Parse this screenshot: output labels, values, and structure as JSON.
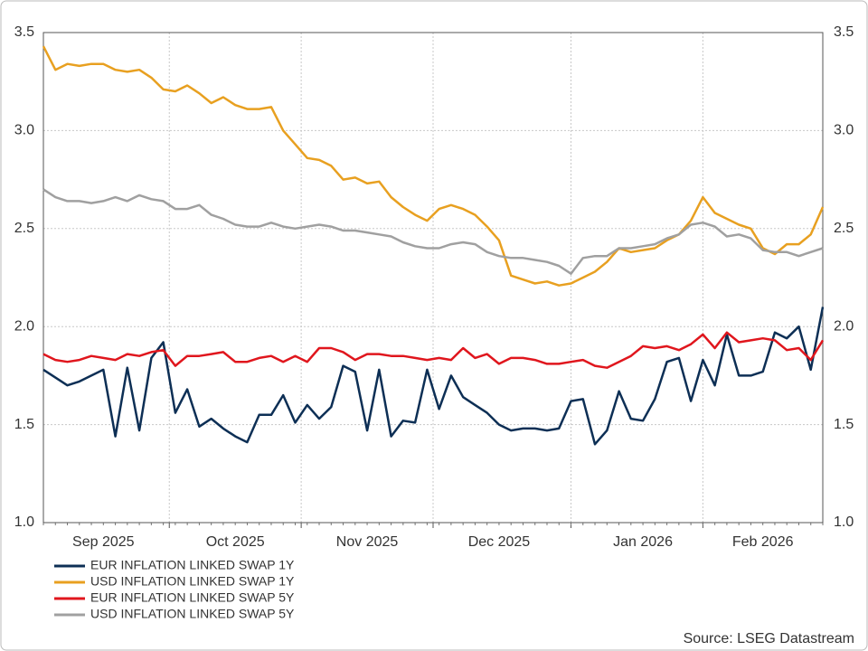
{
  "chart_data": {
    "type": "line",
    "categories": [
      null,
      null,
      null,
      null,
      null,
      "Sep 2025",
      null,
      null,
      null,
      null,
      null,
      null,
      null,
      null,
      null,
      null,
      "Oct 2025",
      null,
      null,
      null,
      null,
      null,
      null,
      null,
      null,
      null,
      null,
      "Nov 2025",
      null,
      null,
      null,
      null,
      null,
      null,
      null,
      null,
      null,
      null,
      "Dec 2025",
      null,
      null,
      null,
      null,
      null,
      null,
      null,
      null,
      null,
      null,
      null,
      "Jan 2026",
      null,
      null,
      null,
      null,
      null,
      null,
      null,
      null,
      null,
      "Feb 2026",
      null,
      null,
      null,
      null,
      null
    ],
    "series": [
      {
        "name": "EUR INFLATION LINKED SWAP 1Y",
        "color": "#0d2f55",
        "values": [
          1.78,
          1.74,
          1.7,
          1.72,
          1.75,
          1.78,
          1.44,
          1.79,
          1.47,
          1.84,
          1.92,
          1.56,
          1.68,
          1.49,
          1.53,
          1.48,
          1.44,
          1.41,
          1.55,
          1.55,
          1.65,
          1.51,
          1.6,
          1.53,
          1.59,
          1.8,
          1.77,
          1.47,
          1.78,
          1.44,
          1.52,
          1.51,
          1.78,
          1.58,
          1.75,
          1.64,
          1.6,
          1.56,
          1.5,
          1.47,
          1.48,
          1.48,
          1.47,
          1.48,
          1.62,
          1.63,
          1.4,
          1.47,
          1.67,
          1.53,
          1.52,
          1.63,
          1.82,
          1.84,
          1.62,
          1.83,
          1.7,
          1.96,
          1.75,
          1.75,
          1.77,
          1.97,
          1.94,
          2.0,
          1.78,
          2.1
        ]
      },
      {
        "name": "USD INFLATION LINKED SWAP 1Y",
        "color": "#e8a020",
        "values": [
          3.43,
          3.31,
          3.34,
          3.33,
          3.34,
          3.34,
          3.31,
          3.3,
          3.31,
          3.27,
          3.21,
          3.2,
          3.23,
          3.19,
          3.14,
          3.17,
          3.13,
          3.11,
          3.11,
          3.12,
          3.0,
          2.93,
          2.86,
          2.85,
          2.82,
          2.75,
          2.76,
          2.73,
          2.74,
          2.66,
          2.61,
          2.57,
          2.54,
          2.6,
          2.62,
          2.6,
          2.57,
          2.51,
          2.44,
          2.26,
          2.24,
          2.22,
          2.23,
          2.21,
          2.22,
          2.25,
          2.28,
          2.33,
          2.4,
          2.38,
          2.39,
          2.4,
          2.44,
          2.47,
          2.54,
          2.66,
          2.58,
          2.55,
          2.52,
          2.5,
          2.4,
          2.37,
          2.42,
          2.42,
          2.47,
          2.61
        ]
      },
      {
        "name": "EUR INFLATION LINKED SWAP 5Y",
        "color": "#e0161d",
        "values": [
          1.86,
          1.83,
          1.82,
          1.83,
          1.85,
          1.84,
          1.83,
          1.86,
          1.85,
          1.87,
          1.88,
          1.8,
          1.85,
          1.85,
          1.86,
          1.87,
          1.82,
          1.82,
          1.84,
          1.85,
          1.82,
          1.85,
          1.82,
          1.89,
          1.89,
          1.87,
          1.83,
          1.86,
          1.86,
          1.85,
          1.85,
          1.84,
          1.83,
          1.84,
          1.83,
          1.89,
          1.84,
          1.86,
          1.81,
          1.84,
          1.84,
          1.83,
          1.81,
          1.81,
          1.82,
          1.83,
          1.8,
          1.79,
          1.82,
          1.85,
          1.9,
          1.89,
          1.9,
          1.88,
          1.91,
          1.96,
          1.89,
          1.97,
          1.92,
          1.93,
          1.94,
          1.93,
          1.88,
          1.89,
          1.83,
          1.93
        ]
      },
      {
        "name": "USD INFLATION LINKED SWAP 5Y",
        "color": "#a0a0a0",
        "values": [
          2.7,
          2.66,
          2.64,
          2.64,
          2.63,
          2.64,
          2.66,
          2.64,
          2.67,
          2.65,
          2.64,
          2.6,
          2.6,
          2.62,
          2.57,
          2.55,
          2.52,
          2.51,
          2.51,
          2.53,
          2.51,
          2.5,
          2.51,
          2.52,
          2.51,
          2.49,
          2.49,
          2.48,
          2.47,
          2.46,
          2.43,
          2.41,
          2.4,
          2.4,
          2.42,
          2.43,
          2.42,
          2.38,
          2.36,
          2.35,
          2.35,
          2.34,
          2.33,
          2.31,
          2.27,
          2.35,
          2.36,
          2.36,
          2.4,
          2.4,
          2.41,
          2.42,
          2.45,
          2.47,
          2.52,
          2.53,
          2.51,
          2.46,
          2.47,
          2.45,
          2.39,
          2.38,
          2.38,
          2.36,
          2.38,
          2.4
        ]
      }
    ],
    "ylim": [
      1,
      3.5
    ],
    "yticks": [
      {
        "value": 1,
        "label": "1.0"
      },
      1.5,
      {
        "value": 2,
        "label": "2.0"
      },
      2.5,
      {
        "value": 3,
        "label": "3.0"
      },
      3.5
    ],
    "y2lim": [
      1,
      3.5
    ],
    "y2ticks": [
      {
        "value": 1,
        "label": "1.0"
      },
      1.5,
      {
        "value": 2,
        "label": "2.0"
      },
      2.5,
      {
        "value": 3,
        "label": "3.0"
      },
      3.5
    ],
    "grid": true,
    "legend": "bottom-left",
    "source": "Source: LSEG Datastream"
  }
}
